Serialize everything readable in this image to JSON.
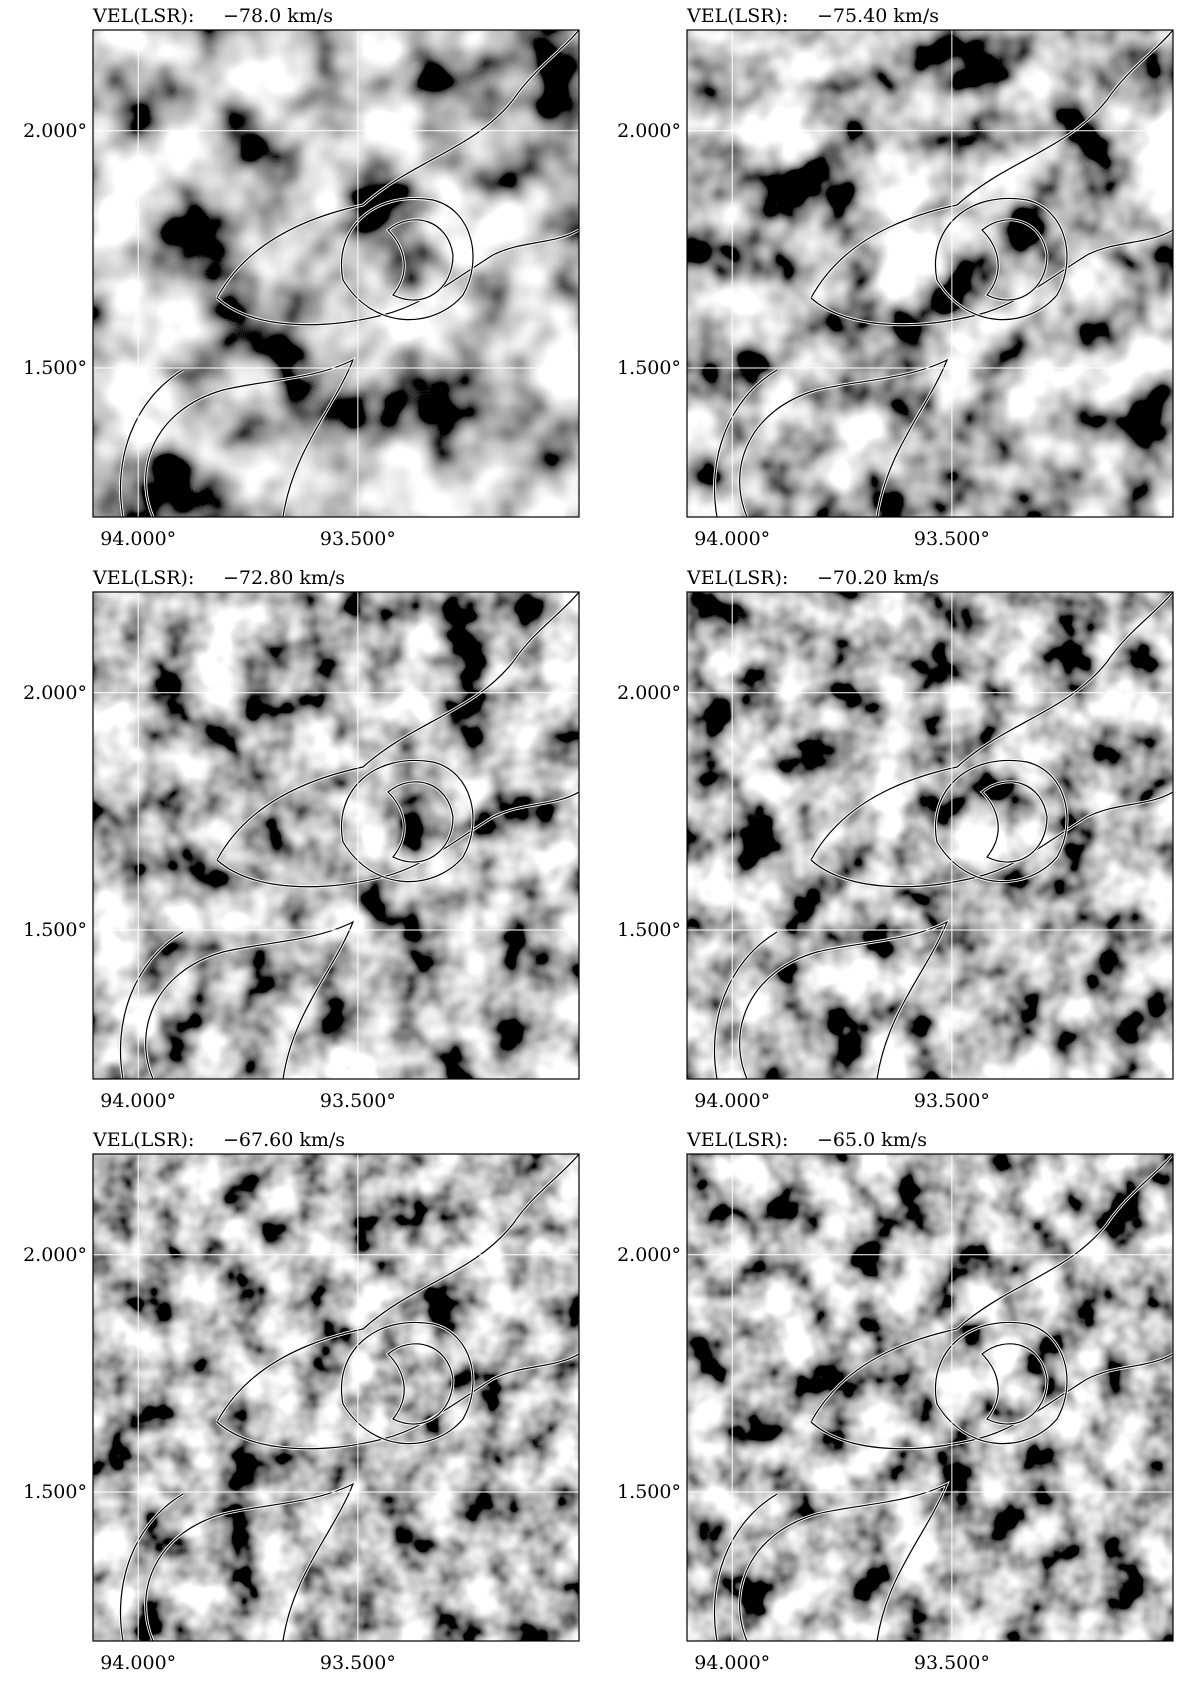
{
  "panels": [
    {
      "label": "VEL(LSR):",
      "velocity": "−78.0 km/s",
      "xticks": [
        "94.000°",
        "93.500°"
      ],
      "yticks": [
        "2.000°",
        "1.500°"
      ]
    },
    {
      "label": "VEL(LSR):",
      "velocity": "−75.40 km/s",
      "xticks": [
        "94.000°",
        "93.500°"
      ],
      "yticks": [
        "2.000°",
        "1.500°"
      ]
    },
    {
      "label": "VEL(LSR):",
      "velocity": "−72.80 km/s",
      "xticks": [
        "94.000°",
        "93.500°"
      ],
      "yticks": [
        "2.000°",
        "1.500°"
      ]
    },
    {
      "label": "VEL(LSR):",
      "velocity": "−70.20 km/s",
      "xticks": [
        "94.000°",
        "93.500°"
      ],
      "yticks": [
        "2.000°",
        "1.500°"
      ]
    },
    {
      "label": "VEL(LSR):",
      "velocity": "−67.60 km/s",
      "xticks": [
        "94.000°",
        "93.500°"
      ],
      "yticks": [
        "2.000°",
        "1.500°"
      ]
    },
    {
      "label": "VEL(LSR):",
      "velocity": "−65.0 km/s",
      "xticks": [
        "94.000°",
        "93.500°"
      ],
      "yticks": [
        "2.000°",
        "1.500°"
      ]
    }
  ]
}
